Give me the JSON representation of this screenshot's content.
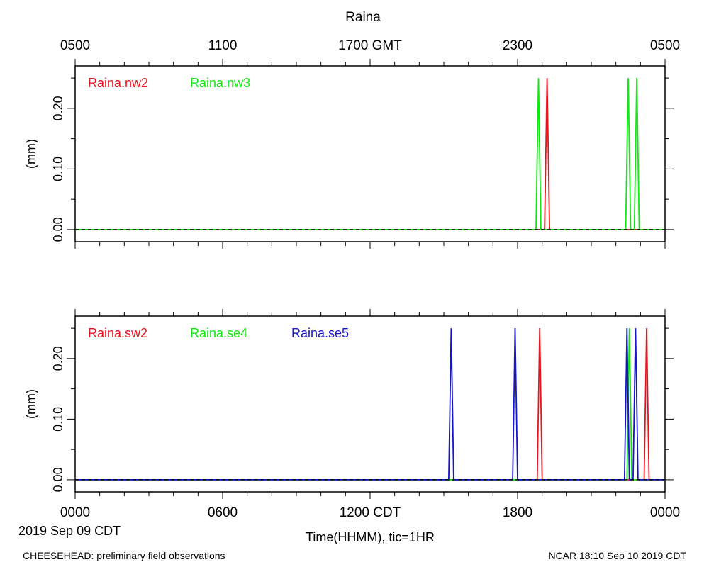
{
  "title": "Raina",
  "colors": {
    "red": "#e8141e",
    "green": "#14e614",
    "blue": "#1414d2"
  },
  "top_axis": {
    "labels": [
      "0500",
      "1100",
      "1700 GMT",
      "2300",
      "0500"
    ]
  },
  "bottom_axis": {
    "labels": [
      "0000",
      "0600",
      "1200 CDT",
      "1800",
      "0000"
    ],
    "date": "2019 Sep 09 CDT",
    "xlabel": "Time(HHMM), tic=1HR"
  },
  "footer": {
    "left": "CHEESEHEAD: preliminary field observations",
    "right": "NCAR 18:10 Sep 10 2019 CDT"
  },
  "chart_data": [
    {
      "type": "line",
      "ylabel": "(mm)",
      "yticks": [
        "0.00",
        "0.10",
        "0.20"
      ],
      "ylim": [
        -0.02,
        0.27
      ],
      "xlim_hours": [
        0,
        24
      ],
      "series": [
        {
          "name": "Raina.nw2",
          "color": "red",
          "x": [
            0,
            19.1,
            19.2,
            19.3,
            24
          ],
          "y": [
            0,
            0,
            0.25,
            0,
            0
          ]
        },
        {
          "name": "Raina.nw3",
          "color": "green",
          "x": [
            0,
            18.75,
            18.85,
            18.95,
            22.4,
            22.5,
            22.6,
            22.75,
            22.85,
            22.95,
            24
          ],
          "y": [
            0,
            0,
            0.25,
            0,
            0,
            0.25,
            0,
            0,
            0.25,
            0,
            0
          ]
        }
      ]
    },
    {
      "type": "line",
      "ylabel": "(mm)",
      "yticks": [
        "0.00",
        "0.10",
        "0.20"
      ],
      "ylim": [
        -0.02,
        0.27
      ],
      "xlim_hours": [
        0,
        24
      ],
      "series": [
        {
          "name": "Raina.sw2",
          "color": "red",
          "x": [
            0,
            18.8,
            18.9,
            19.0,
            23.15,
            23.25,
            23.35,
            24
          ],
          "y": [
            0,
            0,
            0.25,
            0,
            0,
            0.25,
            0,
            0
          ]
        },
        {
          "name": "Raina.se4",
          "color": "green",
          "x": [
            0,
            22.45,
            22.55,
            22.65,
            24
          ],
          "y": [
            0,
            0,
            0.25,
            0,
            0
          ]
        },
        {
          "name": "Raina.se5",
          "color": "blue",
          "x": [
            0,
            15.2,
            15.3,
            15.4,
            17.8,
            17.9,
            18.0,
            22.35,
            22.45,
            22.55,
            22.7,
            22.8,
            22.9,
            24
          ],
          "y": [
            0,
            0,
            0.25,
            0,
            0,
            0.25,
            0,
            0,
            0.25,
            0,
            0,
            0.25,
            0,
            0
          ]
        }
      ]
    }
  ]
}
